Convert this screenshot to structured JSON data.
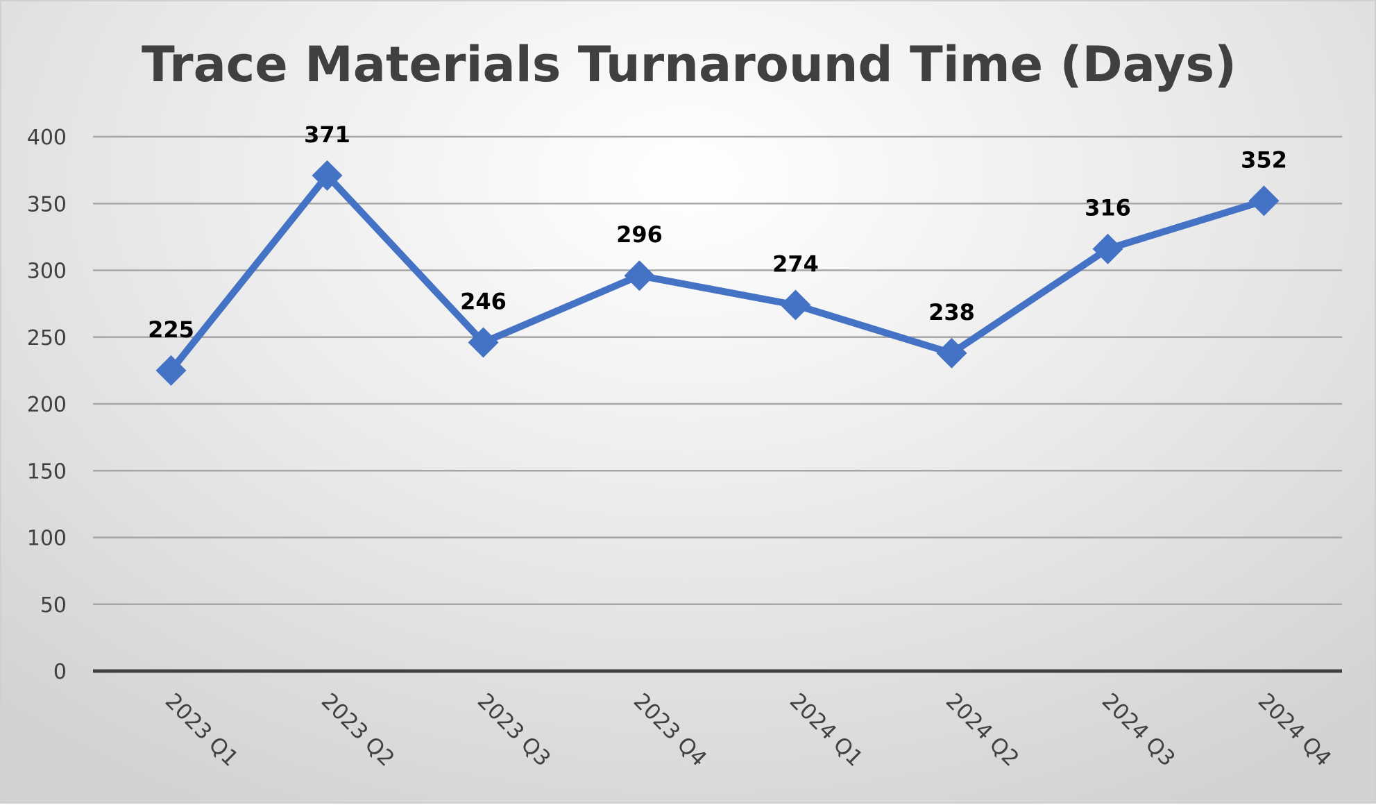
{
  "chart_data": {
    "type": "line",
    "title": "Trace Materials Turnaround Time (Days)",
    "xlabel": "",
    "ylabel": "",
    "categories": [
      "2023 Q1",
      "2023 Q2",
      "2023 Q3",
      "2023 Q4",
      "2024 Q1",
      "2024 Q2",
      "2024 Q3",
      "2024 Q4"
    ],
    "series": [
      {
        "values": [
          225,
          371,
          246,
          296,
          274,
          238,
          316,
          352
        ]
      }
    ],
    "ylim": [
      0,
      400
    ],
    "yticks": [
      0,
      50,
      100,
      150,
      200,
      250,
      300,
      350,
      400
    ],
    "grid": true,
    "drop_lines": true,
    "marker": "diamond",
    "data_labels": true,
    "legend": "none",
    "colors": {
      "line": "#4472C4",
      "gridline": "#a6a6a6",
      "axis": "#404040",
      "title": "#404040",
      "labels": "#000000"
    }
  }
}
